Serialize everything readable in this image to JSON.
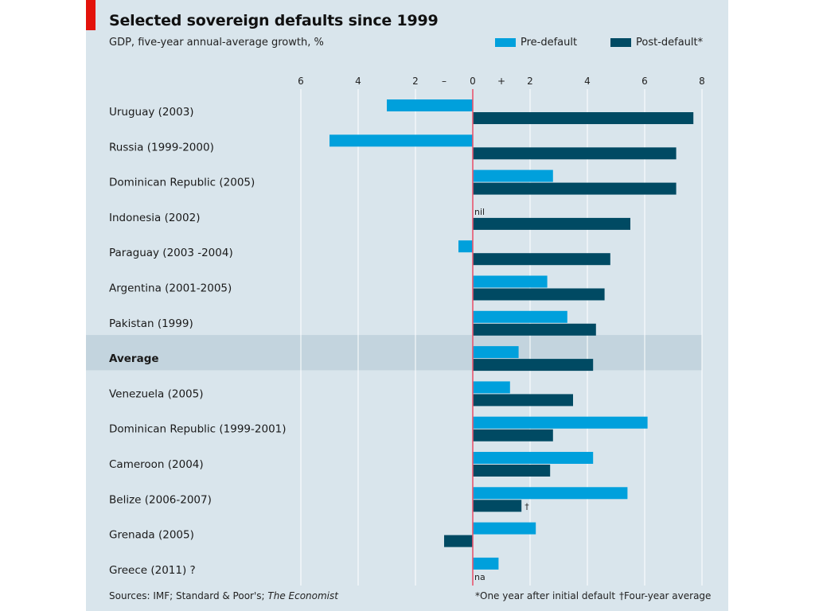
{
  "header": {
    "title": "Selected sovereign defaults since 1999",
    "subtitle": "GDP, five-year annual-average growth, %"
  },
  "legend": {
    "pre_label": "Pre-default",
    "post_label": "Post-default*"
  },
  "colors": {
    "pre": "#00a0dc",
    "post": "#004a63",
    "zero_line": "#e8566f",
    "average_band": "#c3d4de",
    "gridline": "#ffffff",
    "panel": "#d9e5ec",
    "accent": "#e3120b"
  },
  "footer": {
    "sources_prefix": "Sources: IMF; Standard & Poor's; ",
    "sources_italic": "The Economist",
    "footnote_star": "*One year after initial default",
    "footnote_dagger": "†Four-year average"
  },
  "chart_data": {
    "type": "bar",
    "orientation": "horizontal",
    "title": "Selected sovereign defaults since 1999",
    "subtitle": "GDP, five-year annual-average growth, %",
    "xlim": [
      -6,
      8
    ],
    "x_ticks": [
      {
        "value": -6,
        "label": "6"
      },
      {
        "value": -4,
        "label": "4"
      },
      {
        "value": -2,
        "label": "2"
      },
      {
        "value": 0,
        "label": "0"
      },
      {
        "value": 2,
        "label": "2"
      },
      {
        "value": 4,
        "label": "4"
      },
      {
        "value": 6,
        "label": "6"
      },
      {
        "value": 8,
        "label": "8"
      }
    ],
    "sign_labels": {
      "negative": "–",
      "positive": "+"
    },
    "grid": true,
    "legend_position": "top-right",
    "categories": [
      "Uruguay (2003)",
      "Russia (1999-2000)",
      "Dominican Republic (2005)",
      "Indonesia (2002)",
      "Paraguay (2003 -2004)",
      "Argentina (2001-2005)",
      "Pakistan (1999)",
      "Average",
      "Venezuela (2005)",
      "Dominican Republic (1999-2001)",
      "Cameroon (2004)",
      "Belize (2006-2007)",
      "Grenada (2005)",
      "Greece (2011) ?"
    ],
    "highlight_category": "Average",
    "series": [
      {
        "name": "Pre-default",
        "values": [
          -3.0,
          -5.0,
          2.8,
          0.0,
          -0.5,
          2.6,
          3.3,
          1.6,
          1.3,
          6.1,
          4.2,
          5.4,
          2.2,
          0.9
        ]
      },
      {
        "name": "Post-default*",
        "values": [
          7.7,
          7.1,
          7.1,
          5.5,
          4.8,
          4.6,
          4.3,
          4.2,
          3.5,
          2.8,
          2.7,
          1.7,
          -1.0,
          null
        ]
      }
    ],
    "annotations": [
      {
        "category": "Indonesia (2002)",
        "series": "Pre-default",
        "text": "nil"
      },
      {
        "category": "Belize (2006-2007)",
        "series": "Post-default*",
        "text": "†"
      },
      {
        "category": "Greece (2011) ?",
        "series": "Post-default*",
        "text": "na"
      }
    ]
  }
}
